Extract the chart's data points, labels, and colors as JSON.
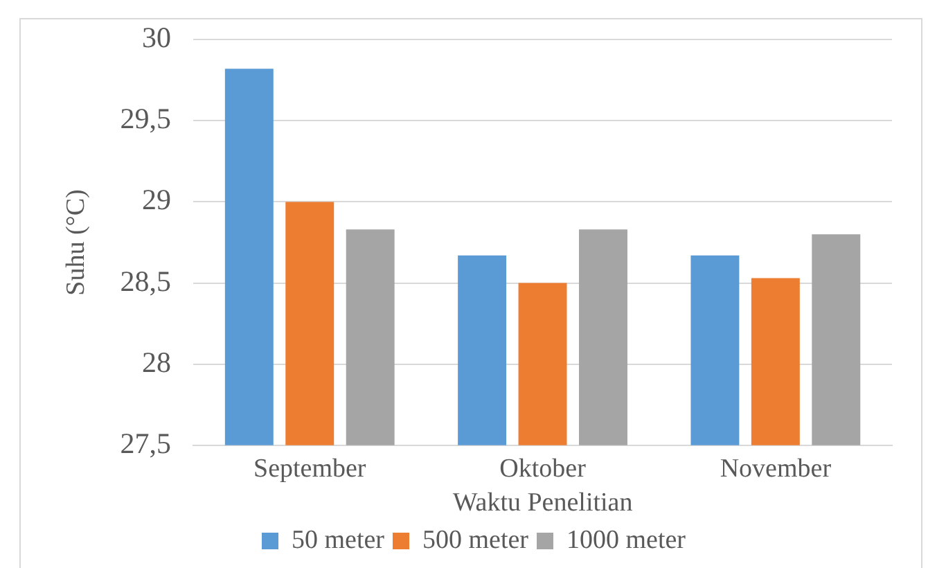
{
  "chart_data": {
    "type": "bar",
    "xlabel": "Waktu Penelitian",
    "ylabel": "Suhu (°C)",
    "categories": [
      "September",
      "Oktober",
      "November"
    ],
    "series": [
      {
        "name": "50 meter",
        "color": "#5b9bd5",
        "values": [
          29.82,
          28.67,
          28.67
        ]
      },
      {
        "name": "500 meter",
        "color": "#ed7d31",
        "values": [
          29.0,
          28.5,
          28.53
        ]
      },
      {
        "name": "1000 meter",
        "color": "#a5a5a5",
        "values": [
          28.83,
          28.83,
          28.8
        ]
      }
    ],
    "ylim": [
      27.5,
      30
    ],
    "yticks": [
      {
        "value": 27.5,
        "label": "27,5"
      },
      {
        "value": 28,
        "label": "28"
      },
      {
        "value": 28.5,
        "label": "28,5"
      },
      {
        "value": 29,
        "label": "29"
      },
      {
        "value": 29.5,
        "label": "29,5"
      },
      {
        "value": 30,
        "label": "30"
      }
    ],
    "grid": "y",
    "legend": "bottom"
  }
}
